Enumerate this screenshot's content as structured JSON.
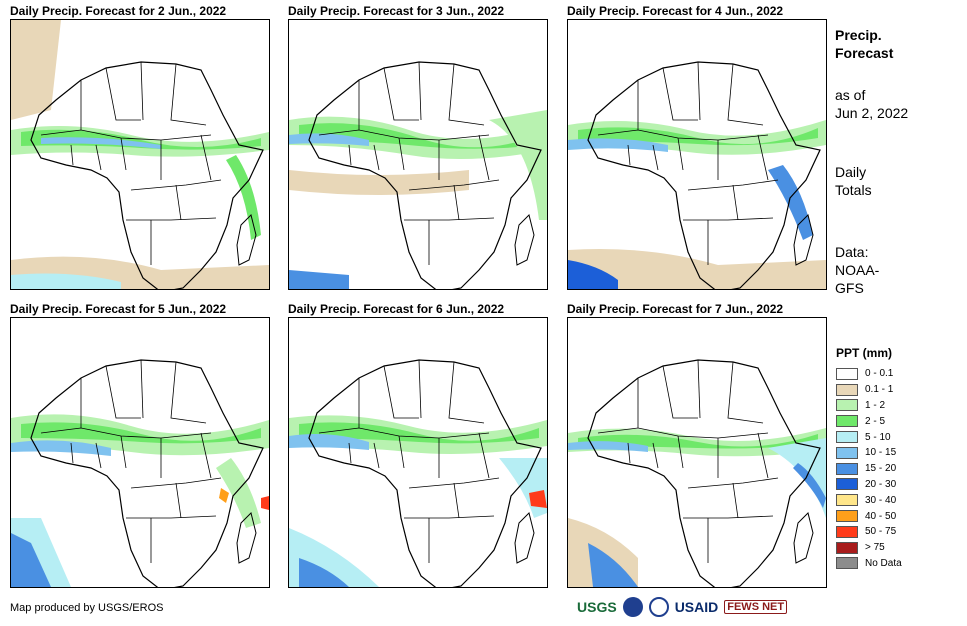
{
  "panels": [
    {
      "title": "Daily Precip. Forecast for 2 Jun., 2022"
    },
    {
      "title": "Daily Precip. Forecast for 3 Jun., 2022"
    },
    {
      "title": "Daily Precip. Forecast for 4 Jun., 2022"
    },
    {
      "title": "Daily Precip. Forecast for 5 Jun., 2022"
    },
    {
      "title": "Daily Precip. Forecast for 6 Jun., 2022"
    },
    {
      "title": "Daily Precip. Forecast for 7 Jun., 2022"
    }
  ],
  "side": {
    "title_line1": "Precip.",
    "title_line2": "Forecast",
    "asof_line1": "as of",
    "asof_line2": "Jun 2, 2022",
    "totals_line1": "Daily",
    "totals_line2": "Totals",
    "data_line1": "Data:",
    "data_line2": "NOAA-",
    "data_line3": "GFS"
  },
  "legend": {
    "title": "PPT (mm)",
    "items": [
      {
        "label": "0 - 0.1",
        "color": "#ffffff"
      },
      {
        "label": "0.1 - 1",
        "color": "#e8d7b8"
      },
      {
        "label": "1 - 2",
        "color": "#b8f2b0"
      },
      {
        "label": "2 - 5",
        "color": "#6fe86a"
      },
      {
        "label": "5 - 10",
        "color": "#b6eef4"
      },
      {
        "label": "10 - 15",
        "color": "#7fc2ef"
      },
      {
        "label": "15 - 20",
        "color": "#4a90e2"
      },
      {
        "label": "20 - 30",
        "color": "#1c5fd8"
      },
      {
        "label": "30 - 40",
        "color": "#ffe68a"
      },
      {
        "label": "40 - 50",
        "color": "#ff9f1a"
      },
      {
        "label": "50 - 75",
        "color": "#ff3b1a"
      },
      {
        "label": "> 75",
        "color": "#a81c1c"
      },
      {
        "label": "No Data",
        "color": "#8c8c8c"
      }
    ]
  },
  "credit": "Map produced by USGS/EROS",
  "logos": {
    "usgs": "USGS",
    "usaid": "USAID",
    "fews": "FEWS NET"
  }
}
